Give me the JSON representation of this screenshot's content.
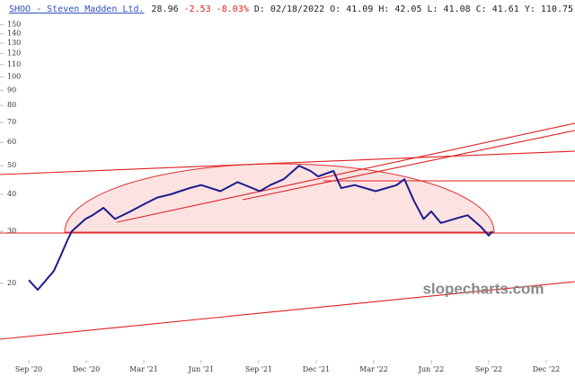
{
  "chart_data": {
    "type": "line",
    "title": "SHOO - Steven Madden Ltd.",
    "info": [
      "28.96",
      "-2.53",
      "-8.03%",
      "D: 02/18/2022",
      "O: 41.09",
      "H: 42.05",
      "L: 41.08",
      "C: 41.61",
      "Y: 110.75"
    ],
    "watermark": "slopecharts.com",
    "log_scale": true,
    "x": [
      0,
      0.47,
      1.31,
      1.69,
      2.02,
      2.25,
      2.96,
      3.33,
      3.9,
      4.5,
      5.3,
      6.0,
      6.7,
      7.4,
      8.4,
      9.0,
      10.0,
      10.9,
      12.06,
      12.6,
      13.3,
      14.1,
      14.7,
      15.1,
      15.9,
      16.3,
      17.0,
      18.1,
      19.2,
      19.6,
      20.1,
      20.6,
      21.0,
      21.5,
      22.2,
      22.9,
      23.6,
      24.0,
      24.2
    ],
    "series": [
      {
        "name": "SHOO",
        "color": "#1c1c8e",
        "values": [
          20.5,
          19,
          22,
          25,
          28,
          30,
          33,
          34,
          36,
          33,
          35,
          37,
          39,
          40,
          42,
          43,
          41,
          44,
          41,
          43,
          45,
          50,
          48,
          46,
          48,
          42,
          43,
          41,
          43,
          45,
          38,
          33,
          35,
          32,
          33,
          34,
          31,
          29,
          30
        ]
      }
    ],
    "xlim": [
      -1.5,
      28.5
    ],
    "xticks": [
      {
        "value": 0,
        "label": "Sep '20"
      },
      {
        "value": 3,
        "label": "Dec '20"
      },
      {
        "value": 6,
        "label": "Mar '21"
      },
      {
        "value": 9,
        "label": "Jun '21"
      },
      {
        "value": 12,
        "label": "Sep '21"
      },
      {
        "value": 15,
        "label": "Dec '21"
      },
      {
        "value": 18,
        "label": "Mar '22"
      },
      {
        "value": 21,
        "label": "Jun '22"
      },
      {
        "value": 24,
        "label": "Sep '22"
      },
      {
        "value": 27,
        "label": "Dec '22"
      }
    ],
    "ylim": [
      11,
      156
    ],
    "yticks": [
      20,
      30,
      40,
      50,
      60,
      70,
      80,
      90,
      100,
      110,
      120,
      130,
      140,
      150
    ]
  }
}
